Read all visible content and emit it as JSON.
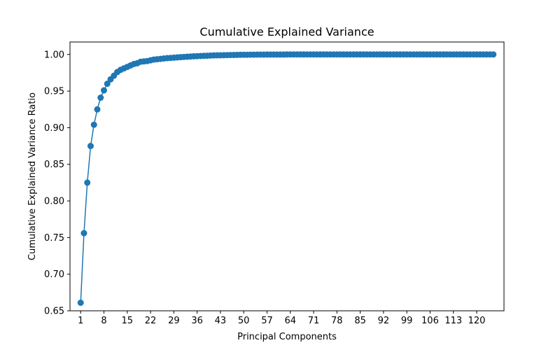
{
  "chart_data": {
    "type": "line",
    "title": "Cumulative Explained Variance",
    "xlabel": "Principal Components",
    "ylabel": "Cumulative Explained Variance Ratio",
    "xlim": [
      -2.2,
      128.2
    ],
    "ylim": [
      0.65,
      1.017
    ],
    "x_ticks": [
      1,
      8,
      15,
      22,
      29,
      36,
      43,
      50,
      57,
      64,
      71,
      78,
      85,
      92,
      99,
      106,
      113,
      120
    ],
    "y_ticks": [
      "0.65",
      "0.70",
      "0.75",
      "0.80",
      "0.85",
      "0.90",
      "0.95",
      "1.00"
    ],
    "grid": false,
    "legend": "none",
    "marker": "circle",
    "color": "#1f77b4",
    "series": [
      {
        "x": [
          1,
          2,
          3,
          4,
          5,
          6,
          7,
          8,
          9,
          10,
          11,
          12,
          13,
          14,
          15,
          16,
          17,
          18,
          19,
          20,
          21,
          22,
          23,
          24,
          25,
          26,
          27,
          28,
          29,
          30,
          31,
          32,
          33,
          34,
          35,
          36,
          37,
          38,
          39,
          40,
          41,
          42,
          43,
          44,
          45,
          46,
          47,
          48,
          49,
          50,
          51,
          52,
          53,
          54,
          55,
          56,
          57,
          58,
          59,
          60,
          61,
          62,
          63,
          64,
          65,
          66,
          67,
          68,
          69,
          70,
          71,
          72,
          73,
          74,
          75,
          76,
          77,
          78,
          79,
          80,
          81,
          82,
          83,
          84,
          85,
          86,
          87,
          88,
          89,
          90,
          91,
          92,
          93,
          94,
          95,
          96,
          97,
          98,
          99,
          100,
          101,
          102,
          103,
          104,
          105,
          106,
          107,
          108,
          109,
          110,
          111,
          112,
          113,
          114,
          115,
          116,
          117,
          118,
          119,
          120,
          121,
          122,
          123,
          124,
          125
        ],
        "values": [
          0.661,
          0.756,
          0.825,
          0.875,
          0.904,
          0.925,
          0.941,
          0.951,
          0.96,
          0.966,
          0.971,
          0.976,
          0.979,
          0.981,
          0.983,
          0.985,
          0.987,
          0.988,
          0.99,
          0.9905,
          0.991,
          0.992,
          0.993,
          0.9935,
          0.994,
          0.9945,
          0.995,
          0.9953,
          0.9956,
          0.996,
          0.9963,
          0.9966,
          0.9969,
          0.9972,
          0.9975,
          0.9977,
          0.9979,
          0.9981,
          0.9983,
          0.9985,
          0.9987,
          0.9988,
          0.9989,
          0.999,
          0.9991,
          0.9992,
          0.9993,
          0.9994,
          0.9995,
          0.9996,
          0.9996,
          0.9997,
          0.9997,
          0.9998,
          0.9998,
          0.9998,
          0.9999,
          0.9999,
          0.9999,
          0.9999,
          0.9999,
          0.9999,
          1.0,
          1.0,
          1.0,
          1.0,
          1.0,
          1.0,
          1.0,
          1.0,
          1.0,
          1.0,
          1.0,
          1.0,
          1.0,
          1.0,
          1.0,
          1.0,
          1.0,
          1.0,
          1.0,
          1.0,
          1.0,
          1.0,
          1.0,
          1.0,
          1.0,
          1.0,
          1.0,
          1.0,
          1.0,
          1.0,
          1.0,
          1.0,
          1.0,
          1.0,
          1.0,
          1.0,
          1.0,
          1.0,
          1.0,
          1.0,
          1.0,
          1.0,
          1.0,
          1.0,
          1.0,
          1.0,
          1.0,
          1.0,
          1.0,
          1.0,
          1.0,
          1.0,
          1.0,
          1.0,
          1.0,
          1.0,
          1.0,
          1.0,
          1.0,
          1.0,
          1.0,
          1.0,
          1.0
        ]
      }
    ]
  }
}
